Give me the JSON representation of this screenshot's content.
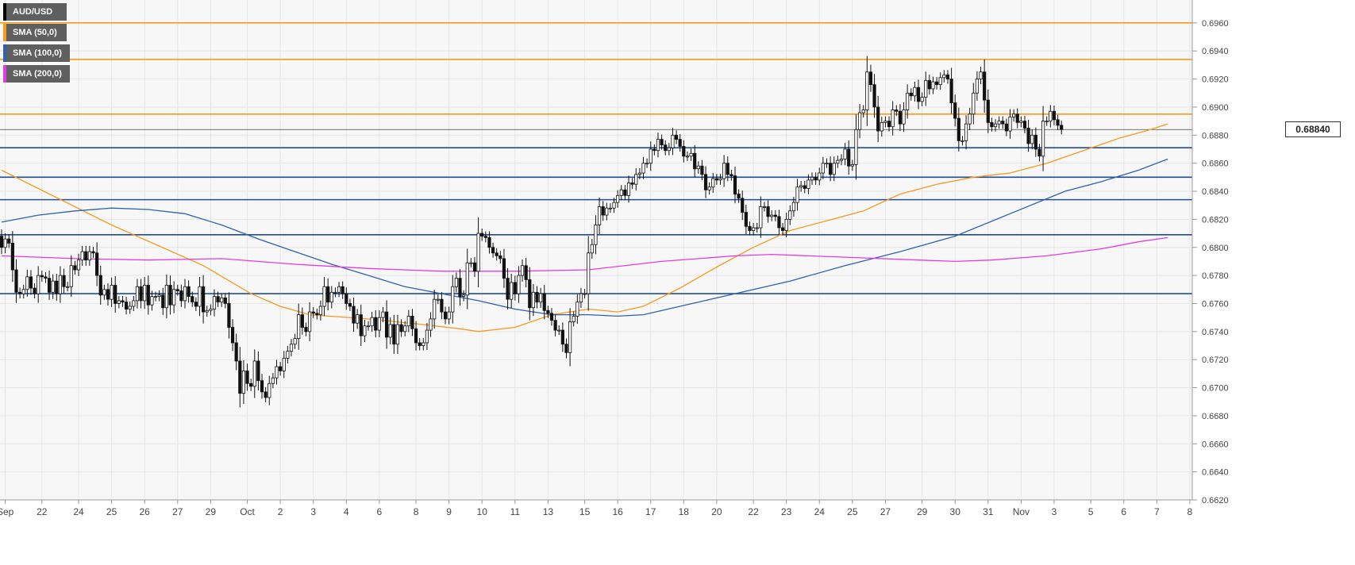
{
  "chart_data": {
    "type": "candlestick",
    "symbol": "AUD/USD",
    "last_price_label": "0.68840",
    "last_price": 0.6884,
    "ylim": [
      0.662,
      0.698
    ],
    "y_ticks": [
      "0.6960",
      "0.6940",
      "0.6920",
      "0.6900",
      "0.6880",
      "0.6860",
      "0.6840",
      "0.6820",
      "0.6800",
      "0.6780",
      "0.6760",
      "0.6740",
      "0.6720",
      "0.6700",
      "0.6680",
      "0.6660",
      "0.6640",
      "0.6620"
    ],
    "x_ticks": [
      {
        "label": "Sep",
        "bar": 1
      },
      {
        "label": "22",
        "bar": 11
      },
      {
        "label": "24",
        "bar": 21
      },
      {
        "label": "25",
        "bar": 30
      },
      {
        "label": "26",
        "bar": 39
      },
      {
        "label": "27",
        "bar": 48
      },
      {
        "label": "29",
        "bar": 57
      },
      {
        "label": "Oct",
        "bar": 67
      },
      {
        "label": "2",
        "bar": 76
      },
      {
        "label": "3",
        "bar": 85
      },
      {
        "label": "4",
        "bar": 94
      },
      {
        "label": "6",
        "bar": 103
      },
      {
        "label": "8",
        "bar": 113
      },
      {
        "label": "9",
        "bar": 122
      },
      {
        "label": "10",
        "bar": 131
      },
      {
        "label": "11",
        "bar": 140
      },
      {
        "label": "13",
        "bar": 149
      },
      {
        "label": "15",
        "bar": 159
      },
      {
        "label": "16",
        "bar": 168
      },
      {
        "label": "17",
        "bar": 177
      },
      {
        "label": "18",
        "bar": 186
      },
      {
        "label": "20",
        "bar": 195
      },
      {
        "label": "22",
        "bar": 205
      },
      {
        "label": "23",
        "bar": 214
      },
      {
        "label": "24",
        "bar": 223
      },
      {
        "label": "25",
        "bar": 232
      },
      {
        "label": "27",
        "bar": 241
      },
      {
        "label": "29",
        "bar": 251
      },
      {
        "label": "30",
        "bar": 260
      },
      {
        "label": "31",
        "bar": 269
      },
      {
        "label": "Nov",
        "bar": 278
      },
      {
        "label": "3",
        "bar": 287
      },
      {
        "label": "5",
        "bar": 297
      },
      {
        "label": "6",
        "bar": 306
      },
      {
        "label": "7",
        "bar": 315
      },
      {
        "label": "8",
        "bar": 324
      }
    ],
    "closes": [
      0.68,
      0.6806,
      0.6803,
      0.6784,
      0.6768,
      0.6767,
      0.677,
      0.6779,
      0.6771,
      0.6767,
      0.678,
      0.6779,
      0.6778,
      0.6768,
      0.6776,
      0.6767,
      0.678,
      0.6772,
      0.6772,
      0.6787,
      0.6784,
      0.6791,
      0.6797,
      0.6791,
      0.6797,
      0.6796,
      0.678,
      0.6766,
      0.677,
      0.6763,
      0.6773,
      0.676,
      0.6762,
      0.6761,
      0.6756,
      0.6758,
      0.6762,
      0.6772,
      0.6762,
      0.6773,
      0.6759,
      0.6765,
      0.6765,
      0.6766,
      0.6757,
      0.6773,
      0.6759,
      0.677,
      0.6769,
      0.6762,
      0.6772,
      0.6765,
      0.6761,
      0.6758,
      0.6772,
      0.6754,
      0.6755,
      0.6756,
      0.6765,
      0.6761,
      0.6764,
      0.676,
      0.6743,
      0.6732,
      0.6719,
      0.6696,
      0.6712,
      0.6703,
      0.6701,
      0.6719,
      0.6705,
      0.6697,
      0.6693,
      0.6703,
      0.6707,
      0.6715,
      0.6712,
      0.6721,
      0.6726,
      0.6731,
      0.6735,
      0.6752,
      0.6743,
      0.674,
      0.6754,
      0.6753,
      0.6752,
      0.6758,
      0.6772,
      0.6761,
      0.6768,
      0.6768,
      0.6772,
      0.6767,
      0.676,
      0.6758,
      0.6746,
      0.6752,
      0.6737,
      0.6744,
      0.6744,
      0.675,
      0.6741,
      0.675,
      0.6754,
      0.6736,
      0.6745,
      0.6731,
      0.6745,
      0.674,
      0.6744,
      0.6751,
      0.6742,
      0.6732,
      0.673,
      0.6732,
      0.6741,
      0.6749,
      0.6763,
      0.6763,
      0.6754,
      0.6749,
      0.6754,
      0.6772,
      0.6778,
      0.6765,
      0.6766,
      0.6789,
      0.6789,
      0.6783,
      0.681,
      0.6808,
      0.6807,
      0.68,
      0.6796,
      0.6794,
      0.6792,
      0.6778,
      0.6763,
      0.6775,
      0.6767,
      0.678,
      0.6787,
      0.6777,
      0.6757,
      0.6768,
      0.6761,
      0.6767,
      0.6755,
      0.6753,
      0.6748,
      0.6741,
      0.6741,
      0.6731,
      0.6725,
      0.6747,
      0.6751,
      0.6761,
      0.6767,
      0.6767,
      0.6796,
      0.6802,
      0.6816,
      0.6829,
      0.6823,
      0.6828,
      0.6828,
      0.6832,
      0.6837,
      0.6841,
      0.6837,
      0.6846,
      0.6845,
      0.6852,
      0.6853,
      0.686,
      0.686,
      0.687,
      0.6869,
      0.6877,
      0.6873,
      0.6869,
      0.6871,
      0.688,
      0.6877,
      0.6872,
      0.6865,
      0.6865,
      0.6867,
      0.6856,
      0.6858,
      0.6852,
      0.6841,
      0.6843,
      0.6849,
      0.6848,
      0.6849,
      0.686,
      0.6852,
      0.6851,
      0.6838,
      0.6835,
      0.6825,
      0.6815,
      0.6812,
      0.6814,
      0.6814,
      0.6829,
      0.6829,
      0.6822,
      0.6823,
      0.6822,
      0.6814,
      0.6812,
      0.682,
      0.6826,
      0.6832,
      0.6843,
      0.6844,
      0.6842,
      0.6848,
      0.685,
      0.6848,
      0.6853,
      0.686,
      0.686,
      0.6852,
      0.686,
      0.6862,
      0.6863,
      0.687,
      0.6858,
      0.6859,
      0.6884,
      0.6896,
      0.6898,
      0.6925,
      0.6916,
      0.69,
      0.6883,
      0.6889,
      0.689,
      0.6886,
      0.6898,
      0.6897,
      0.6888,
      0.6898,
      0.691,
      0.6908,
      0.6914,
      0.6904,
      0.6907,
      0.6919,
      0.6913,
      0.6918,
      0.6916,
      0.6921,
      0.6923,
      0.692,
      0.6903,
      0.6892,
      0.6876,
      0.6876,
      0.6888,
      0.6895,
      0.691,
      0.692,
      0.6925,
      0.6905,
      0.6889,
      0.6886,
      0.6888,
      0.689,
      0.6888,
      0.6883,
      0.6893,
      0.6895,
      0.6889,
      0.689,
      0.6885,
      0.6874,
      0.688,
      0.687,
      0.6865,
      0.689,
      0.689,
      0.6897,
      0.6891,
      0.6887,
      0.6884
    ],
    "series": [
      {
        "name": "SMA (50,0)",
        "color": "#f59b1d",
        "points": [
          [
            0,
            0.6855
          ],
          [
            30,
            0.6816
          ],
          [
            55,
            0.6787
          ],
          [
            68,
            0.6767
          ],
          [
            76,
            0.6758
          ],
          [
            84,
            0.6752
          ],
          [
            100,
            0.6749
          ],
          [
            115,
            0.6745
          ],
          [
            125,
            0.6742
          ],
          [
            130,
            0.674
          ],
          [
            140,
            0.6743
          ],
          [
            150,
            0.6752
          ],
          [
            160,
            0.6756
          ],
          [
            168,
            0.6754
          ],
          [
            175,
            0.6758
          ],
          [
            185,
            0.6771
          ],
          [
            195,
            0.6786
          ],
          [
            205,
            0.68
          ],
          [
            215,
            0.6812
          ],
          [
            225,
            0.6819
          ],
          [
            235,
            0.6826
          ],
          [
            245,
            0.6838
          ],
          [
            255,
            0.6845
          ],
          [
            265,
            0.685
          ],
          [
            275,
            0.6853
          ],
          [
            285,
            0.686
          ],
          [
            295,
            0.6869
          ],
          [
            305,
            0.6878
          ],
          [
            312,
            0.6883
          ],
          [
            318,
            0.6888
          ]
        ]
      },
      {
        "name": "SMA (100,0)",
        "color": "#2e62ad",
        "points": [
          [
            0,
            0.6818
          ],
          [
            10,
            0.6823
          ],
          [
            20,
            0.6826
          ],
          [
            30,
            0.6828
          ],
          [
            40,
            0.6827
          ],
          [
            50,
            0.6824
          ],
          [
            60,
            0.6816
          ],
          [
            70,
            0.6806
          ],
          [
            80,
            0.6797
          ],
          [
            90,
            0.6788
          ],
          [
            100,
            0.678
          ],
          [
            110,
            0.6772
          ],
          [
            120,
            0.6767
          ],
          [
            130,
            0.6762
          ],
          [
            140,
            0.6756
          ],
          [
            150,
            0.6752
          ],
          [
            160,
            0.6752
          ],
          [
            168,
            0.6751
          ],
          [
            175,
            0.6752
          ],
          [
            185,
            0.6758
          ],
          [
            200,
            0.6767
          ],
          [
            215,
            0.6776
          ],
          [
            230,
            0.6787
          ],
          [
            245,
            0.6797
          ],
          [
            260,
            0.6808
          ],
          [
            275,
            0.6824
          ],
          [
            290,
            0.684
          ],
          [
            300,
            0.6847
          ],
          [
            310,
            0.6855
          ],
          [
            318,
            0.6863
          ]
        ]
      },
      {
        "name": "SMA (200,0)",
        "color": "#e23de0",
        "points": [
          [
            0,
            0.6794
          ],
          [
            20,
            0.6792
          ],
          [
            40,
            0.6791
          ],
          [
            60,
            0.6792
          ],
          [
            80,
            0.6788
          ],
          [
            100,
            0.6785
          ],
          [
            120,
            0.6783
          ],
          [
            140,
            0.6783
          ],
          [
            160,
            0.6784
          ],
          [
            180,
            0.679
          ],
          [
            200,
            0.6794
          ],
          [
            210,
            0.6795
          ],
          [
            230,
            0.6793
          ],
          [
            250,
            0.6791
          ],
          [
            260,
            0.679
          ],
          [
            270,
            0.6791
          ],
          [
            285,
            0.6794
          ],
          [
            300,
            0.6799
          ],
          [
            310,
            0.6804
          ],
          [
            318,
            0.6807
          ]
        ]
      }
    ],
    "horizontal_lines": [
      {
        "value": 0.696,
        "color": "#f59b1d"
      },
      {
        "value": 0.6934,
        "color": "#f59b1d"
      },
      {
        "value": 0.6895,
        "color": "#f59b1d"
      },
      {
        "value": 0.6871,
        "color": "#1f4d9a"
      },
      {
        "value": 0.685,
        "color": "#1f4d9a"
      },
      {
        "value": 0.6834,
        "color": "#1f4d9a"
      },
      {
        "value": 0.6809,
        "color": "#1f4d9a"
      },
      {
        "value": 0.6767,
        "color": "#1f4d9a"
      }
    ],
    "grid": true
  },
  "legend": [
    {
      "label": "AUD/USD",
      "color": "#000000"
    },
    {
      "label": "SMA (50,0)",
      "color": "#f59b1d"
    },
    {
      "label": "SMA (100,0)",
      "color": "#2e62ad"
    },
    {
      "label": "SMA (200,0)",
      "color": "#e23de0"
    }
  ]
}
